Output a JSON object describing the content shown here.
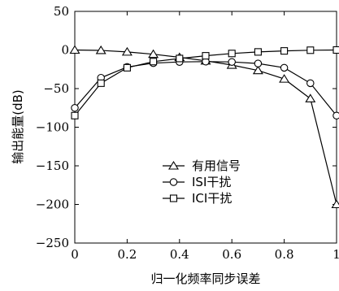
{
  "chart_data": {
    "type": "line",
    "title": "",
    "xlabel": "归一化频率同步误差",
    "ylabel": "输出能量(dB)",
    "xlim": [
      0,
      1
    ],
    "ylim": [
      -250,
      50
    ],
    "xticks": [
      0,
      0.2,
      0.4,
      0.6,
      0.8,
      1
    ],
    "yticks": [
      50,
      0,
      -50,
      -100,
      -150,
      -200,
      -250
    ],
    "xtick_labels": [
      "0",
      "0.2",
      "0.4",
      "0.6",
      "0.8",
      "1"
    ],
    "ytick_labels": [
      "50",
      "0",
      "−50",
      "−100",
      "−150",
      "−200",
      "−250"
    ],
    "grid": false,
    "legend_position": "lower-center",
    "x": [
      0,
      0.1,
      0.2,
      0.3,
      0.4,
      0.5,
      0.6,
      0.7,
      0.8,
      0.9,
      1
    ],
    "series": [
      {
        "name": "有用信号",
        "marker": "triangle",
        "values": [
          0,
          -0.5,
          -2.5,
          -5.5,
          -9.5,
          -14,
          -19.5,
          -26.5,
          -37.5,
          -63,
          -200
        ]
      },
      {
        "name": "ISI干扰",
        "marker": "circle",
        "values": [
          -75,
          -36,
          -22,
          -17,
          -15.5,
          -15,
          -15.5,
          -17.5,
          -23,
          -43,
          -85
        ]
      },
      {
        "name": "ICI干扰",
        "marker": "square",
        "values": [
          -85,
          -43,
          -23,
          -15,
          -11,
          -7.5,
          -4.5,
          -2.5,
          -1.2,
          -0.3,
          0
        ]
      }
    ]
  }
}
